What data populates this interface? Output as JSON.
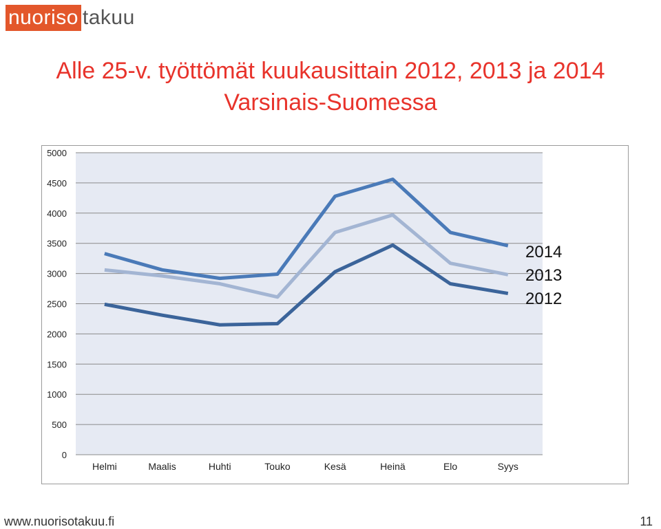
{
  "logo": {
    "part1": "nuoriso",
    "part2": "takuu"
  },
  "title_line1": "Alle 25-v. työttömät kuukausittain 2012, 2013 ja 2014",
  "title_line2": "Varsinais-Suomessa",
  "footer": {
    "url": "www.nuorisotakuu.fi",
    "page": "11"
  },
  "colors": {
    "2014": "#4a7ab8",
    "2013": "#a3b5d3",
    "2012": "#3b649a",
    "plot_bg": "#e6eaf3",
    "title": "#e8332b",
    "logo": "#e3572b"
  },
  "chart_data": {
    "type": "line",
    "categories": [
      "Helmi",
      "Maalis",
      "Huhti",
      "Touko",
      "Kesä",
      "Heinä",
      "Elo",
      "Syys"
    ],
    "series": [
      {
        "name": "2014",
        "values": [
          3330,
          3060,
          2920,
          2990,
          4280,
          4560,
          3680,
          3460
        ]
      },
      {
        "name": "2013",
        "values": [
          3060,
          2960,
          2830,
          2610,
          3680,
          3970,
          3170,
          2980
        ]
      },
      {
        "name": "2012",
        "values": [
          2490,
          2310,
          2150,
          2170,
          3030,
          3470,
          2830,
          2670
        ]
      }
    ],
    "ylim": [
      0,
      5000
    ],
    "yticks": [
      "0",
      "500",
      "1000",
      "1500",
      "2000",
      "2500",
      "3000",
      "3500",
      "4000",
      "4500",
      "5000"
    ],
    "grid": true,
    "legend": "right",
    "title": "",
    "xlabel": "",
    "ylabel": ""
  }
}
